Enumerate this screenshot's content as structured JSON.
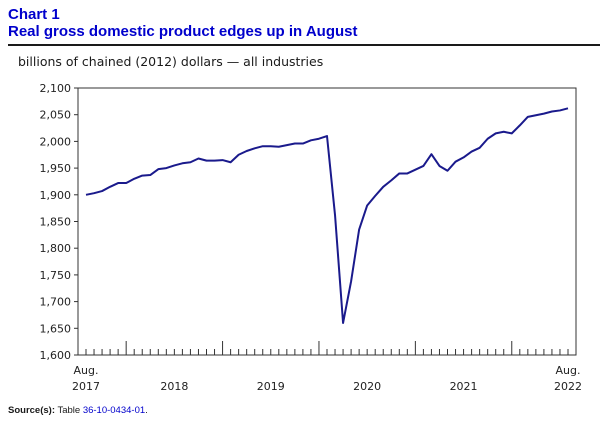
{
  "header": {
    "chart_label": "Chart 1",
    "title": "Real gross domestic product edges up in August"
  },
  "unit_label": "billions of chained (2012) dollars — all industries",
  "source": {
    "label": "Source(s):",
    "text": "Table",
    "link": "36-10-0434-01",
    "suffix": "."
  },
  "colors": {
    "line": "#1a1a8c",
    "title": "#0000cc",
    "axis": "#333333"
  },
  "chart_data": {
    "type": "line",
    "title": "Real gross domestic product edges up in August",
    "ylabel": "billions of chained (2012) dollars — all industries",
    "xlabel": "",
    "ylim": [
      1600,
      2100
    ],
    "y_ticks": [
      "1,600",
      "1,650",
      "1,700",
      "1,750",
      "1,800",
      "1,850",
      "1,900",
      "1,950",
      "2,000",
      "2,050",
      "2,100"
    ],
    "x_start": "2017-08",
    "x_end": "2022-08",
    "x_tick_labels": [
      {
        "top": "Aug.",
        "bottom": "2017",
        "month": "2017-08"
      },
      {
        "top": "",
        "bottom": "2018",
        "month": "2018-07"
      },
      {
        "top": "",
        "bottom": "2019",
        "month": "2019-07"
      },
      {
        "top": "",
        "bottom": "2020",
        "month": "2020-07"
      },
      {
        "top": "",
        "bottom": "2021",
        "month": "2021-07"
      },
      {
        "top": "Aug.",
        "bottom": "2022",
        "month": "2022-08"
      }
    ],
    "year_boundaries": [
      "2018-01",
      "2019-01",
      "2020-01",
      "2021-01",
      "2022-01"
    ],
    "grid": false,
    "series": [
      {
        "x": [
          "2017-08",
          "2017-09",
          "2017-10",
          "2017-11",
          "2017-12",
          "2018-01",
          "2018-02",
          "2018-03",
          "2018-04",
          "2018-05",
          "2018-06",
          "2018-07",
          "2018-08",
          "2018-09",
          "2018-10",
          "2018-11",
          "2018-12",
          "2019-01",
          "2019-02",
          "2019-03",
          "2019-04",
          "2019-05",
          "2019-06",
          "2019-07",
          "2019-08",
          "2019-09",
          "2019-10",
          "2019-11",
          "2019-12",
          "2020-01",
          "2020-02",
          "2020-03",
          "2020-04",
          "2020-05",
          "2020-06",
          "2020-07",
          "2020-08",
          "2020-09",
          "2020-10",
          "2020-11",
          "2020-12",
          "2021-01",
          "2021-02",
          "2021-03",
          "2021-04",
          "2021-05",
          "2021-06",
          "2021-07",
          "2021-08",
          "2021-09",
          "2021-10",
          "2021-11",
          "2021-12",
          "2022-01",
          "2022-02",
          "2022-03",
          "2022-04",
          "2022-05",
          "2022-06",
          "2022-07",
          "2022-08"
        ],
        "values": [
          1900,
          1903,
          1907,
          1915,
          1922,
          1922,
          1930,
          1936,
          1937,
          1948,
          1950,
          1955,
          1959,
          1961,
          1968,
          1964,
          1964,
          1965,
          1961,
          1975,
          1982,
          1987,
          1991,
          1991,
          1990,
          1993,
          1996,
          1996,
          2002,
          2005,
          2010,
          1862,
          1660,
          1738,
          1835,
          1880,
          1898,
          1915,
          1927,
          1940,
          1940,
          1947,
          1954,
          1976,
          1954,
          1945,
          1962,
          1970,
          1981,
          1988,
          2005,
          2015,
          2018,
          2015,
          2030,
          2046,
          2049,
          2052,
          2056,
          2058,
          2062
        ]
      }
    ]
  }
}
